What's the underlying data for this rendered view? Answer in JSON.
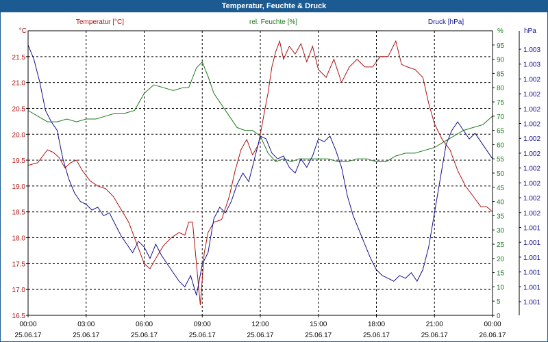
{
  "window": {
    "title": "Temperatur, Feuchte & Druck"
  },
  "chart_data": {
    "type": "line",
    "title": "Temperatur, Feuchte & Druck",
    "x_ticks": [
      {
        "time": "00:00",
        "date": "25.06.17"
      },
      {
        "time": "03:00",
        "date": "25.06.17"
      },
      {
        "time": "06:00",
        "date": "25.06.17"
      },
      {
        "time": "09:00",
        "date": "25.06.17"
      },
      {
        "time": "12:00",
        "date": "25.06.17"
      },
      {
        "time": "15:00",
        "date": "25.06.17"
      },
      {
        "time": "18:00",
        "date": "25.06.17"
      },
      {
        "time": "21:00",
        "date": "25.06.17"
      },
      {
        "time": "00:00",
        "date": "26.06.17"
      }
    ],
    "x_range_hours": [
      0,
      24
    ],
    "grid": true,
    "axes": {
      "temperature": {
        "label": "Temperatur [°C]",
        "unit": "°C",
        "color": "#b01010",
        "range": [
          16.5,
          22.0
        ],
        "ticks": [
          "21.5",
          "21.0",
          "20.5",
          "20.0",
          "19.5",
          "19.0",
          "18.5",
          "18.0",
          "17.5",
          "17.0",
          "16.5"
        ]
      },
      "humidity": {
        "label": "rel. Feuchte [%]",
        "unit": "%",
        "color": "#1a7a1a",
        "range": [
          0,
          100
        ],
        "ticks": [
          "95",
          "90",
          "85",
          "80",
          "75",
          "70",
          "65",
          "60",
          "55",
          "50",
          "45",
          "40",
          "35",
          "30",
          "25",
          "20",
          "15",
          "10",
          "5",
          "0"
        ]
      },
      "pressure": {
        "label": "Druck [hPa]",
        "unit": "hPa",
        "color": "#101090",
        "ticks": [
          "1.003",
          "1.003",
          "1.002",
          "1.002",
          "1.002",
          "1.002",
          "1.002",
          "1.002",
          "1.002",
          "1.002",
          "1.002",
          "1.002",
          "1.001",
          "1.001",
          "1.001",
          "1.001",
          "1.001",
          "1.001"
        ]
      }
    },
    "series": [
      {
        "name": "Temperatur [°C]",
        "axis": "temperature",
        "color": "#b01010",
        "x": [
          0,
          0.5,
          0.8,
          1.0,
          1.3,
          1.6,
          1.9,
          2.2,
          2.5,
          2.8,
          3.2,
          3.6,
          4.0,
          4.4,
          4.8,
          5.2,
          5.6,
          6.0,
          6.3,
          6.6,
          7.0,
          7.4,
          7.8,
          8.1,
          8.3,
          8.5,
          8.7,
          8.9,
          9.1,
          9.3,
          9.6,
          10.0,
          10.4,
          10.7,
          11.0,
          11.3,
          11.6,
          11.9,
          12.2,
          12.4,
          12.6,
          12.8,
          13.0,
          13.2,
          13.5,
          13.8,
          14.1,
          14.4,
          14.7,
          15.0,
          15.4,
          15.8,
          16.2,
          16.6,
          17.0,
          17.4,
          17.8,
          18.2,
          18.6,
          19.0,
          19.3,
          19.6,
          20.0,
          20.4,
          20.7,
          21.0,
          21.4,
          21.8,
          22.2,
          22.6,
          23.0,
          23.4,
          23.7,
          24.0
        ],
        "y": [
          19.4,
          19.45,
          19.6,
          19.7,
          19.65,
          19.55,
          19.35,
          19.45,
          19.5,
          19.3,
          19.1,
          19.0,
          18.95,
          18.8,
          18.55,
          18.3,
          17.9,
          17.5,
          17.4,
          17.6,
          17.85,
          18.0,
          18.1,
          18.05,
          18.3,
          18.3,
          17.5,
          16.7,
          17.7,
          18.1,
          18.3,
          18.35,
          18.8,
          19.3,
          19.7,
          19.9,
          19.6,
          19.8,
          20.4,
          20.8,
          21.3,
          21.6,
          21.8,
          21.45,
          21.7,
          21.55,
          21.75,
          21.4,
          21.7,
          21.25,
          21.1,
          21.45,
          21.0,
          21.3,
          21.45,
          21.3,
          21.3,
          21.5,
          21.5,
          21.8,
          21.35,
          21.3,
          21.25,
          21.1,
          20.6,
          20.2,
          19.9,
          19.7,
          19.3,
          19.0,
          18.8,
          18.6,
          18.6,
          18.5
        ]
      },
      {
        "name": "rel. Feuchte [%]",
        "axis": "humidity",
        "color": "#1a7a1a",
        "x": [
          0,
          0.5,
          1.0,
          1.5,
          2.0,
          2.5,
          3.0,
          3.5,
          4.0,
          4.5,
          5.0,
          5.5,
          6.0,
          6.5,
          7.0,
          7.5,
          8.0,
          8.3,
          8.7,
          9.0,
          9.3,
          9.6,
          10.0,
          10.4,
          10.8,
          11.2,
          11.6,
          12.0,
          12.4,
          12.8,
          13.2,
          13.6,
          14.0,
          14.5,
          15.0,
          15.5,
          16.0,
          16.5,
          17.0,
          17.5,
          18.0,
          18.5,
          19.0,
          19.5,
          20.0,
          20.5,
          21.0,
          21.5,
          22.0,
          22.5,
          23.0,
          23.5,
          24.0
        ],
        "y": [
          72,
          70,
          68,
          68,
          69,
          68,
          69,
          69,
          70,
          71,
          71,
          72,
          78,
          81,
          80,
          79,
          80,
          80,
          87,
          89,
          84,
          78,
          74,
          70,
          66,
          65,
          65,
          63,
          57,
          54,
          55,
          54,
          55,
          55,
          55,
          55,
          54,
          54,
          55,
          55,
          54,
          54,
          56,
          57,
          57,
          58,
          59,
          61,
          63,
          65,
          66,
          67,
          70
        ]
      },
      {
        "name": "Druck [hPa]",
        "axis": "pressure",
        "color": "#101090",
        "x": [
          0,
          0.3,
          0.6,
          0.9,
          1.2,
          1.5,
          1.8,
          2.1,
          2.4,
          2.7,
          3.0,
          3.3,
          3.6,
          3.9,
          4.2,
          4.5,
          4.8,
          5.1,
          5.4,
          5.7,
          6.0,
          6.3,
          6.6,
          6.9,
          7.2,
          7.5,
          7.8,
          8.1,
          8.4,
          8.7,
          9.0,
          9.3,
          9.6,
          9.9,
          10.2,
          10.5,
          10.8,
          11.1,
          11.4,
          11.7,
          12.0,
          12.3,
          12.6,
          12.9,
          13.2,
          13.5,
          13.8,
          14.1,
          14.4,
          14.7,
          15.0,
          15.3,
          15.6,
          15.9,
          16.2,
          16.5,
          16.8,
          17.1,
          17.4,
          17.7,
          18.0,
          18.3,
          18.6,
          18.9,
          19.2,
          19.5,
          19.8,
          20.1,
          20.4,
          20.7,
          21.0,
          21.3,
          21.6,
          21.9,
          22.2,
          22.5,
          22.8,
          23.1,
          23.4,
          23.7,
          24.0
        ],
        "y": [
          95,
          90,
          82,
          72,
          68,
          65,
          55,
          48,
          43,
          40,
          39,
          37,
          38,
          35,
          36,
          32,
          28,
          25,
          22,
          26,
          24,
          20,
          25,
          21,
          18,
          15,
          12,
          10,
          14,
          7,
          18,
          22,
          34,
          38,
          36,
          40,
          46,
          50,
          47,
          55,
          63,
          62,
          57,
          55,
          56,
          52,
          50,
          55,
          52,
          56,
          62,
          61,
          63,
          58,
          52,
          42,
          35,
          30,
          25,
          20,
          16,
          14,
          13,
          12,
          14,
          13,
          15,
          12,
          16,
          24,
          36,
          48,
          60,
          65,
          68,
          65,
          62,
          64,
          61,
          58,
          55
        ]
      }
    ]
  }
}
